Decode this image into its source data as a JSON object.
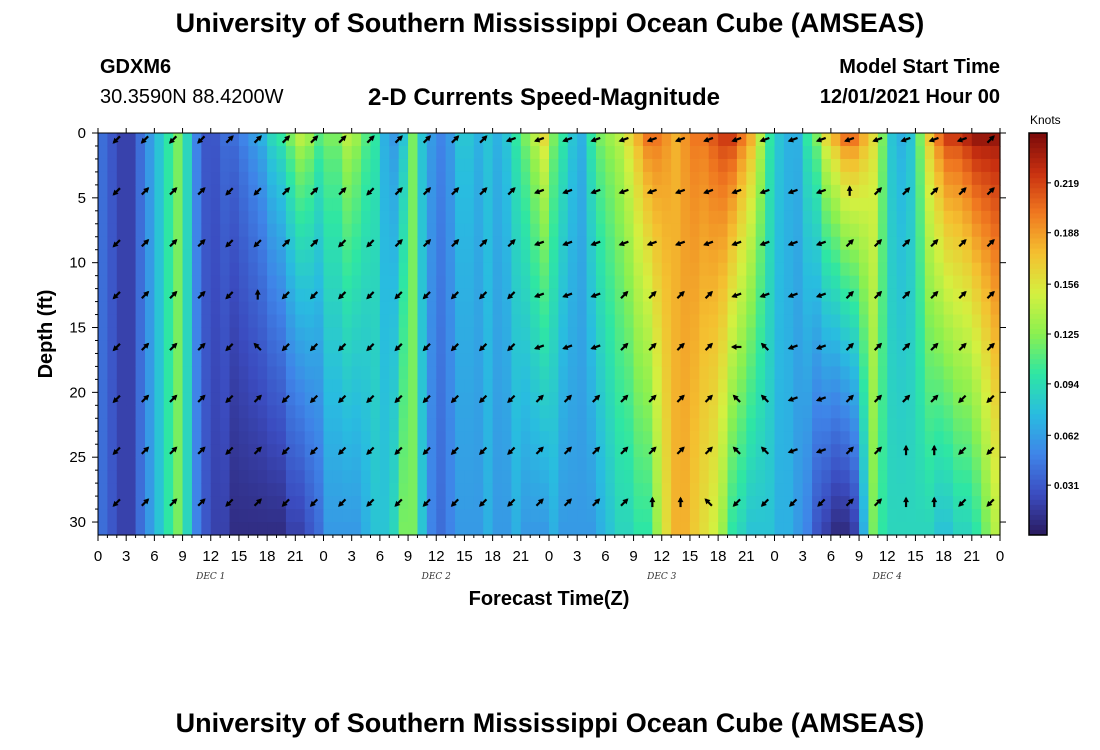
{
  "header": {
    "title": "University of Southern Mississippi Ocean Cube (AMSEAS)",
    "station": "GDXM6",
    "coords": "30.3590N  88.4200W",
    "subtitle": "2-D Currents Speed-Magnitude",
    "model_start_label": "Model Start Time",
    "model_start_value": "12/01/2021 Hour 00"
  },
  "footer": {
    "title": "University of Southern Mississippi Ocean Cube (AMSEAS)"
  },
  "colors": {
    "cmap": [
      "#2a1a5e",
      "#3b4cc0",
      "#3f84e8",
      "#29bce0",
      "#2ee6a4",
      "#8af050",
      "#d4f040",
      "#f4c030",
      "#f07820",
      "#c83010",
      "#7a0a0a"
    ]
  },
  "chart_data": {
    "type": "heatmap",
    "title": "2-D Currents Speed-Magnitude",
    "xlabel": "Forecast Time(Z)",
    "ylabel": "Depth (ft)",
    "xlim": [
      0,
      96
    ],
    "ylim": [
      0,
      31
    ],
    "x_ticks": [
      0,
      3,
      6,
      9,
      12,
      15,
      18,
      21,
      24,
      27,
      30,
      33,
      36,
      39,
      42,
      45,
      48,
      51,
      54,
      57,
      60,
      63,
      66,
      69,
      72,
      75,
      78,
      81,
      84,
      87,
      90,
      93,
      96
    ],
    "x_tick_labels": [
      "0",
      "3",
      "6",
      "9",
      "12",
      "15",
      "18",
      "21",
      "0",
      "3",
      "6",
      "9",
      "12",
      "15",
      "18",
      "21",
      "0",
      "3",
      "6",
      "9",
      "12",
      "15",
      "18",
      "21",
      "0",
      "3",
      "6",
      "9",
      "12",
      "15",
      "18",
      "21",
      "0"
    ],
    "date_labels": [
      {
        "label": "DEC 1",
        "x": 12
      },
      {
        "label": "DEC 2",
        "x": 36
      },
      {
        "label": "DEC 3",
        "x": 60
      },
      {
        "label": "DEC 4",
        "x": 84
      }
    ],
    "y_ticks": [
      0,
      5,
      10,
      15,
      20,
      25,
      30
    ],
    "y_tick_labels": [
      "0",
      "5",
      "10",
      "15",
      "20",
      "25",
      "30"
    ],
    "colorbar": {
      "units": "Knots",
      "min": 0,
      "max": 0.25,
      "ticks": [
        0.031,
        0.062,
        0.094,
        0.125,
        0.156,
        0.188,
        0.219
      ],
      "tick_labels": [
        "0.031",
        "0.062",
        "0.094",
        "0.125",
        "0.156",
        "0.188",
        "0.219"
      ]
    },
    "speed_profile": {
      "columns_x": [
        0,
        1,
        2,
        3,
        4,
        5,
        6,
        7,
        8,
        9,
        10,
        11,
        12,
        13,
        14,
        15,
        16,
        17,
        18,
        19,
        20,
        21,
        22,
        23,
        24,
        25,
        26,
        27,
        28,
        29,
        30,
        31,
        32,
        33,
        34,
        35,
        36,
        37,
        38,
        39,
        40,
        41,
        42,
        43,
        44,
        45,
        46,
        47,
        48,
        49,
        50,
        51,
        52,
        53,
        54,
        55,
        56,
        57,
        58,
        59,
        60,
        61,
        62,
        63,
        64,
        65,
        66,
        67,
        68,
        69,
        70,
        71,
        72,
        73,
        74,
        75,
        76,
        77,
        78,
        79,
        80,
        81,
        82,
        83,
        84,
        85,
        86,
        87,
        88,
        89,
        90,
        91,
        92,
        93,
        94,
        95,
        96
      ],
      "surface": [
        0.04,
        0.03,
        0.02,
        0.02,
        0.04,
        0.06,
        0.08,
        0.1,
        0.12,
        0.09,
        0.05,
        0.03,
        0.03,
        0.04,
        0.04,
        0.05,
        0.06,
        0.07,
        0.09,
        0.1,
        0.12,
        0.14,
        0.13,
        0.11,
        0.12,
        0.12,
        0.14,
        0.13,
        0.11,
        0.1,
        0.07,
        0.06,
        0.08,
        0.12,
        0.08,
        0.06,
        0.05,
        0.06,
        0.08,
        0.08,
        0.07,
        0.08,
        0.07,
        0.08,
        0.1,
        0.12,
        0.14,
        0.16,
        0.12,
        0.1,
        0.08,
        0.07,
        0.1,
        0.12,
        0.13,
        0.14,
        0.16,
        0.18,
        0.2,
        0.2,
        0.19,
        0.18,
        0.19,
        0.2,
        0.2,
        0.21,
        0.22,
        0.22,
        0.2,
        0.18,
        0.14,
        0.1,
        0.08,
        0.07,
        0.07,
        0.1,
        0.12,
        0.16,
        0.18,
        0.2,
        0.2,
        0.18,
        0.16,
        0.12,
        0.08,
        0.07,
        0.08,
        0.12,
        0.17,
        0.2,
        0.22,
        0.22,
        0.23,
        0.24,
        0.24,
        0.24,
        0.24
      ],
      "bottom": [
        0.04,
        0.03,
        0.02,
        0.02,
        0.04,
        0.06,
        0.08,
        0.1,
        0.12,
        0.09,
        0.05,
        0.03,
        0.02,
        0.02,
        0.01,
        0.01,
        0.01,
        0.01,
        0.01,
        0.01,
        0.02,
        0.02,
        0.03,
        0.04,
        0.06,
        0.06,
        0.06,
        0.06,
        0.07,
        0.08,
        0.08,
        0.09,
        0.12,
        0.12,
        0.08,
        0.05,
        0.04,
        0.05,
        0.06,
        0.06,
        0.06,
        0.07,
        0.06,
        0.06,
        0.07,
        0.06,
        0.06,
        0.06,
        0.07,
        0.06,
        0.06,
        0.06,
        0.06,
        0.07,
        0.08,
        0.09,
        0.09,
        0.1,
        0.1,
        0.13,
        0.16,
        0.18,
        0.18,
        0.17,
        0.16,
        0.15,
        0.13,
        0.1,
        0.09,
        0.08,
        0.08,
        0.08,
        0.07,
        0.07,
        0.06,
        0.05,
        0.03,
        0.02,
        0.01,
        0.01,
        0.02,
        0.07,
        0.12,
        0.1,
        0.09,
        0.09,
        0.09,
        0.09,
        0.09,
        0.08,
        0.08,
        0.09,
        0.09,
        0.1,
        0.12,
        0.14,
        0.16
      ]
    },
    "vectors": {
      "x": [
        2,
        5,
        8,
        11,
        14,
        17,
        20,
        23,
        26,
        29,
        32,
        35,
        38,
        41,
        44,
        47,
        50,
        53,
        56,
        59,
        62,
        65,
        68,
        71,
        74,
        77,
        80,
        83,
        86,
        89,
        92,
        95
      ],
      "depths": [
        0.5,
        4.5,
        8.5,
        12.5,
        16.5,
        20.5,
        24.5,
        28.5
      ],
      "directions_deg": [
        [
          225,
          225,
          225,
          225,
          45,
          45,
          45,
          45,
          45,
          45,
          45,
          45,
          45,
          45,
          200,
          200,
          200,
          200,
          200,
          200,
          200,
          200,
          200,
          200,
          200,
          200,
          200,
          200,
          200,
          200,
          200,
          45
        ],
        [
          225,
          45,
          45,
          45,
          225,
          225,
          45,
          45,
          45,
          225,
          45,
          45,
          45,
          45,
          45,
          200,
          200,
          200,
          200,
          200,
          200,
          200,
          200,
          200,
          200,
          200,
          90,
          45,
          45,
          45,
          45,
          45
        ],
        [
          225,
          45,
          45,
          45,
          225,
          225,
          45,
          45,
          225,
          225,
          45,
          45,
          45,
          45,
          45,
          200,
          200,
          200,
          200,
          200,
          200,
          200,
          200,
          200,
          200,
          200,
          45,
          45,
          45,
          45,
          45,
          45
        ],
        [
          225,
          45,
          45,
          45,
          225,
          90,
          225,
          225,
          225,
          225,
          225,
          225,
          225,
          225,
          225,
          200,
          200,
          200,
          45,
          45,
          45,
          45,
          200,
          200,
          200,
          200,
          45,
          45,
          45,
          45,
          45,
          45
        ],
        [
          225,
          45,
          45,
          45,
          225,
          135,
          225,
          225,
          225,
          225,
          225,
          225,
          225,
          225,
          225,
          200,
          200,
          200,
          45,
          45,
          45,
          45,
          180,
          135,
          200,
          200,
          45,
          45,
          45,
          45,
          45,
          45
        ],
        [
          225,
          45,
          45,
          45,
          225,
          45,
          225,
          225,
          225,
          225,
          225,
          225,
          225,
          225,
          225,
          45,
          45,
          45,
          45,
          45,
          45,
          45,
          135,
          135,
          200,
          200,
          45,
          45,
          45,
          45,
          225,
          225
        ],
        [
          225,
          45,
          45,
          45,
          225,
          45,
          225,
          225,
          225,
          225,
          225,
          225,
          225,
          225,
          225,
          45,
          45,
          45,
          45,
          45,
          45,
          45,
          135,
          135,
          200,
          200,
          45,
          45,
          90,
          90,
          225,
          225
        ],
        [
          225,
          45,
          45,
          45,
          225,
          45,
          225,
          225,
          225,
          225,
          225,
          225,
          225,
          225,
          225,
          45,
          45,
          45,
          45,
          90,
          90,
          135,
          225,
          225,
          225,
          225,
          45,
          45,
          90,
          90,
          225,
          225
        ]
      ]
    }
  }
}
